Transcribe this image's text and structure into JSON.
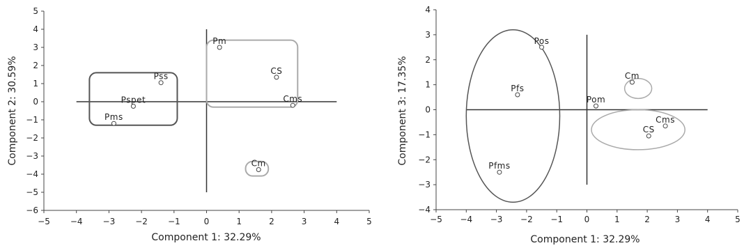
{
  "chart_data": [
    {
      "type": "scatter",
      "xlabel": "Component 1: 32.29%",
      "ylabel": "Component 2: 30.59%",
      "xlim": [
        -5,
        5
      ],
      "ylim": [
        -6,
        5
      ],
      "xticks": [
        -5,
        -4,
        -3,
        -2,
        -1,
        0,
        1,
        2,
        3,
        4,
        5
      ],
      "yticks": [
        -6,
        -5,
        -4,
        -3,
        -2,
        -1,
        0,
        1,
        2,
        3,
        4,
        5
      ],
      "points": [
        {
          "label": "Pm",
          "x": 0.4,
          "y": 3.0
        },
        {
          "label": "CS",
          "x": 2.15,
          "y": 1.35
        },
        {
          "label": "Cms",
          "x": 2.65,
          "y": -0.2
        },
        {
          "label": "Pss",
          "x": -1.4,
          "y": 1.05
        },
        {
          "label": "Pspet",
          "x": -2.25,
          "y": -0.25
        },
        {
          "label": "Pms",
          "x": -2.85,
          "y": -1.2
        },
        {
          "label": "Cm",
          "x": 1.6,
          "y": -3.75
        }
      ],
      "reference_lines": {
        "horizontal": {
          "y": 0,
          "from": -4,
          "to": 4
        },
        "vertical": {
          "x": 0,
          "from": -5,
          "to": 4
        }
      },
      "groups": [
        {
          "shape": "rect",
          "color": "#555555",
          "bounds": {
            "x": [
              -3.6,
              -0.9
            ],
            "y": [
              -1.3,
              1.6
            ]
          }
        },
        {
          "shape": "rect",
          "color": "#aaaaaa",
          "bounds": {
            "x": [
              0,
              2.8
            ],
            "y": [
              -0.3,
              3.4
            ]
          }
        },
        {
          "shape": "rect",
          "color": "#aaaaaa",
          "bounds": {
            "x": [
              1.2,
              1.9
            ],
            "y": [
              -4.1,
              -3.3
            ]
          }
        }
      ]
    },
    {
      "type": "scatter",
      "xlabel": "Component 1: 32.29%",
      "ylabel": "Component 3: 17.35%",
      "xlim": [
        -5,
        5
      ],
      "ylim": [
        -4,
        4
      ],
      "xticks": [
        -5,
        -4,
        -3,
        -2,
        -1,
        0,
        1,
        2,
        3,
        4,
        5
      ],
      "yticks": [
        -4,
        -3,
        -2,
        -1,
        0,
        1,
        2,
        3,
        4
      ],
      "points": [
        {
          "label": "Pos",
          "x": -1.5,
          "y": 2.5
        },
        {
          "label": "Pfs",
          "x": -2.3,
          "y": 0.6
        },
        {
          "label": "Pom",
          "x": 0.3,
          "y": 0.15
        },
        {
          "label": "Cm",
          "x": 1.5,
          "y": 1.1
        },
        {
          "label": "Cms",
          "x": 2.6,
          "y": -0.65
        },
        {
          "label": "CS",
          "x": 2.05,
          "y": -1.05
        },
        {
          "label": "Pfms",
          "x": -2.9,
          "y": -2.5
        }
      ],
      "reference_lines": {
        "horizontal": {
          "y": 0,
          "from": -4,
          "to": 4
        },
        "vertical": {
          "x": 0,
          "from": -3,
          "to": 3
        }
      },
      "groups": [
        {
          "shape": "ellipse",
          "color": "#555555",
          "center": [
            -2.45,
            -0.25
          ],
          "radii": [
            1.55,
            3.45
          ]
        },
        {
          "shape": "ellipse",
          "color": "#aaaaaa",
          "center": [
            1.7,
            -0.8
          ],
          "radii": [
            1.55,
            0.8
          ]
        },
        {
          "shape": "ellipse",
          "color": "#aaaaaa",
          "center": [
            1.7,
            0.85
          ],
          "radii": [
            0.45,
            0.4
          ]
        }
      ]
    }
  ]
}
